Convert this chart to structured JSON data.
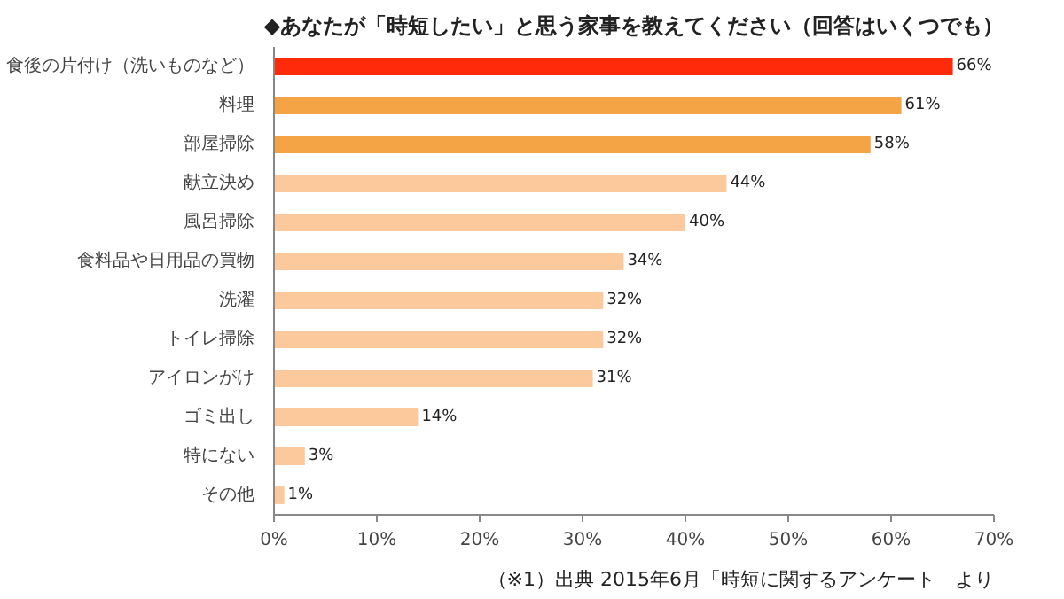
{
  "chart_data": {
    "type": "bar",
    "orientation": "horizontal",
    "title": "◆あなたが「時短したい」と思う家事を教えてください（回答はいくつでも）",
    "categories": [
      "食後の片付け（洗いものなど）",
      "料理",
      "部屋掃除",
      "献立決め",
      "風呂掃除",
      "食料品や日用品の買物",
      "洗濯",
      "トイレ掃除",
      "アイロンがけ",
      "ゴミ出し",
      "特にない",
      "その他"
    ],
    "values": [
      66,
      61,
      58,
      44,
      40,
      34,
      32,
      32,
      31,
      14,
      3,
      1
    ],
    "colors": [
      "#ff2a0a",
      "#f5a445",
      "#f5a445",
      "#fbc99b",
      "#fbc99b",
      "#fbc99b",
      "#fbc99b",
      "#fbc99b",
      "#fbc99b",
      "#fbc99b",
      "#fbc99b",
      "#fbc99b"
    ],
    "value_labels": [
      "66%",
      "61%",
      "58%",
      "44%",
      "40%",
      "34%",
      "32%",
      "32%",
      "31%",
      "14%",
      "3%",
      "1%"
    ],
    "xlim": [
      0,
      70
    ],
    "xticks": [
      {
        "value": 0,
        "label": "0%"
      },
      {
        "value": 10,
        "label": "10%"
      },
      {
        "value": 20,
        "label": "20%"
      },
      {
        "value": 30,
        "label": "30%"
      },
      {
        "value": 40,
        "label": "40%"
      },
      {
        "value": 50,
        "label": "50%"
      },
      {
        "value": 60,
        "label": "60%"
      },
      {
        "value": 70,
        "label": "70%"
      }
    ],
    "grid": false,
    "annotations": [
      "（※1）出典 2015年6月「時短に関するアンケート」より"
    ]
  }
}
